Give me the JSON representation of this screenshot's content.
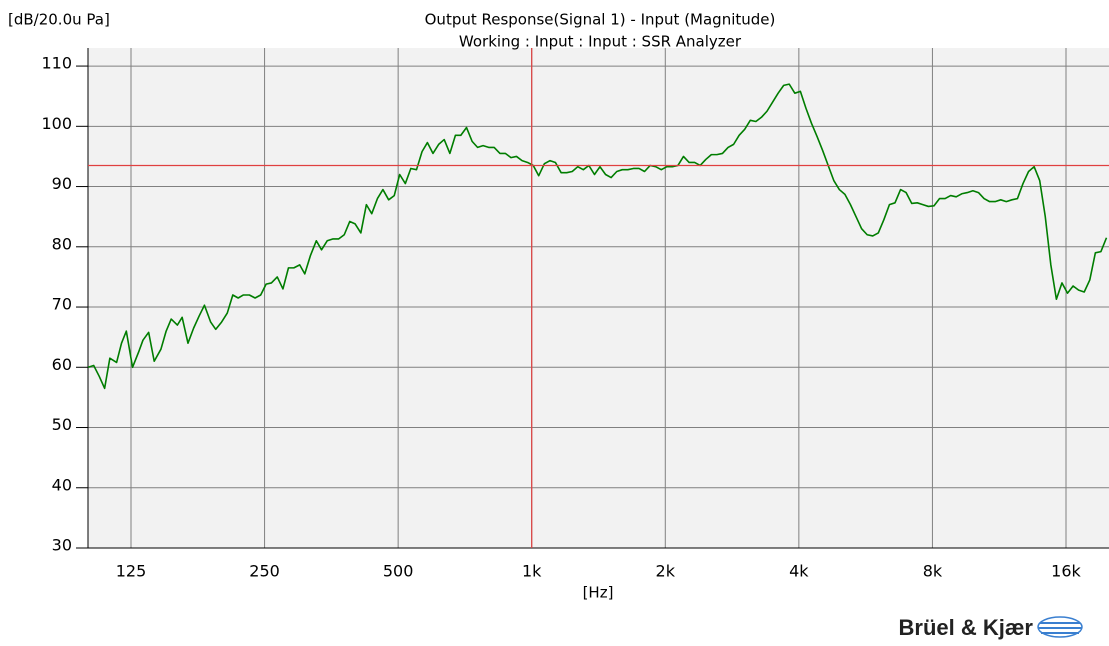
{
  "chart_data": {
    "type": "line",
    "title": "Output Response(Signal 1) - Input (Magnitude)",
    "subtitle": "Working : Input : Input : SSR Analyzer",
    "y_label": "[dB/20.0u Pa]",
    "x_label": "[Hz]",
    "brand": "Brüel & Kjær",
    "log_x": true,
    "grid": true,
    "color": "#007d00",
    "cursor_color": "#e04040",
    "cursor_x": 1000,
    "cursor_y": 93.5,
    "xlim": [
      100,
      20000
    ],
    "ylim": [
      30,
      113
    ],
    "xticks": [
      125,
      250,
      500,
      {
        "value": 1000,
        "label": "1k"
      },
      {
        "value": 2000,
        "label": "2k"
      },
      {
        "value": 4000,
        "label": "4k"
      },
      {
        "value": 8000,
        "label": "8k"
      },
      {
        "value": 16000,
        "label": "16k"
      }
    ],
    "yticks": [
      30,
      40,
      50,
      60,
      70,
      80,
      90,
      100,
      110
    ],
    "x": [
      100,
      103,
      106,
      109,
      112,
      116,
      119,
      122,
      126,
      130,
      133,
      137,
      141,
      146,
      150,
      154,
      159,
      163,
      168,
      173,
      178,
      183,
      189,
      194,
      200,
      206,
      212,
      218,
      224,
      231,
      238,
      245,
      252,
      259,
      267,
      275,
      283,
      291,
      300,
      308,
      317,
      327,
      336,
      346,
      356,
      367,
      378,
      389,
      400,
      412,
      424,
      436,
      449,
      462,
      476,
      490,
      504,
      519,
      534,
      550,
      566,
      582,
      599,
      617,
      635,
      654,
      673,
      692,
      713,
      734,
      755,
      777,
      800,
      823,
      848,
      872,
      898,
      924,
      951,
      979,
      1008,
      1037,
      1068,
      1099,
      1131,
      1165,
      1199,
      1234,
      1270,
      1307,
      1345,
      1385,
      1425,
      1467,
      1510,
      1555,
      1600,
      1647,
      1695,
      1745,
      1796,
      1849,
      1903,
      1959,
      2016,
      2075,
      2136,
      2198,
      2263,
      2329,
      2397,
      2468,
      2540,
      2614,
      2691,
      2770,
      2851,
      2934,
      3020,
      3109,
      3200,
      3294,
      3390,
      3490,
      3592,
      3697,
      3805,
      3917,
      4032,
      4150,
      4271,
      4397,
      4525,
      4658,
      4795,
      4935,
      5080,
      5228,
      5382,
      5539,
      5702,
      5869,
      6041,
      6218,
      6400,
      6588,
      6781,
      6979,
      7184,
      7394,
      7611,
      7834,
      8063,
      8299,
      8543,
      8793,
      9051,
      9316,
      9589,
      9870,
      10159,
      10457,
      10763,
      11079,
      11404,
      11738,
      12082,
      12436,
      12800,
      13175,
      13561,
      13959,
      14368,
      14789,
      15222,
      15668,
      16127,
      16600,
      17086,
      17587,
      18102,
      18633,
      19179,
      19741
    ],
    "values": [
      60,
      60.3,
      58.5,
      56.5,
      61.5,
      60.8,
      64,
      66,
      60,
      62.5,
      64.5,
      65.8,
      61,
      63,
      66,
      68,
      67,
      68.3,
      64,
      66.5,
      68.5,
      70.3,
      67.5,
      66.3,
      67.5,
      69,
      72,
      71.5,
      72,
      72,
      71.5,
      72,
      73.8,
      74,
      75,
      73,
      76.5,
      76.5,
      77,
      75.5,
      78.5,
      81,
      79.5,
      81,
      81.3,
      81.3,
      82,
      84.2,
      83.8,
      82.3,
      87,
      85.5,
      88,
      89.5,
      87.8,
      88.5,
      92,
      90.5,
      93,
      92.8,
      95.8,
      97.3,
      95.5,
      97,
      97.8,
      95.5,
      98.5,
      98.5,
      99.8,
      97.5,
      96.5,
      96.8,
      96.5,
      96.5,
      95.5,
      95.5,
      94.8,
      95,
      94.3,
      94,
      93.5,
      91.8,
      93.8,
      94.3,
      94,
      92.3,
      92.3,
      92.5,
      93.3,
      92.8,
      93.5,
      92,
      93.3,
      92,
      91.5,
      92.5,
      92.8,
      92.8,
      93,
      93,
      92.5,
      93.5,
      93.3,
      92.8,
      93.3,
      93.3,
      93.5,
      95,
      94,
      94,
      93.5,
      94.5,
      95.3,
      95.3,
      95.5,
      96.5,
      97,
      98.5,
      99.5,
      101,
      100.8,
      101.5,
      102.5,
      104,
      105.5,
      106.8,
      107,
      105.5,
      105.8,
      103,
      100.5,
      98.3,
      96,
      93.5,
      91,
      89.5,
      88.7,
      87,
      85,
      83,
      82,
      81.8,
      82.3,
      84.5,
      87,
      87.3,
      89.5,
      89,
      87.2,
      87.3,
      87,
      86.7,
      86.8,
      88,
      88,
      88.5,
      88.3,
      88.8,
      89,
      89.3,
      89,
      88,
      87.5,
      87.5,
      87.8,
      87.5,
      87.8,
      88,
      90.5,
      92.5,
      93.3,
      91,
      85,
      77,
      71.3,
      74,
      72.3,
      73.5,
      72.8,
      72.5,
      74.5,
      79,
      79.2,
      81.5
    ]
  }
}
